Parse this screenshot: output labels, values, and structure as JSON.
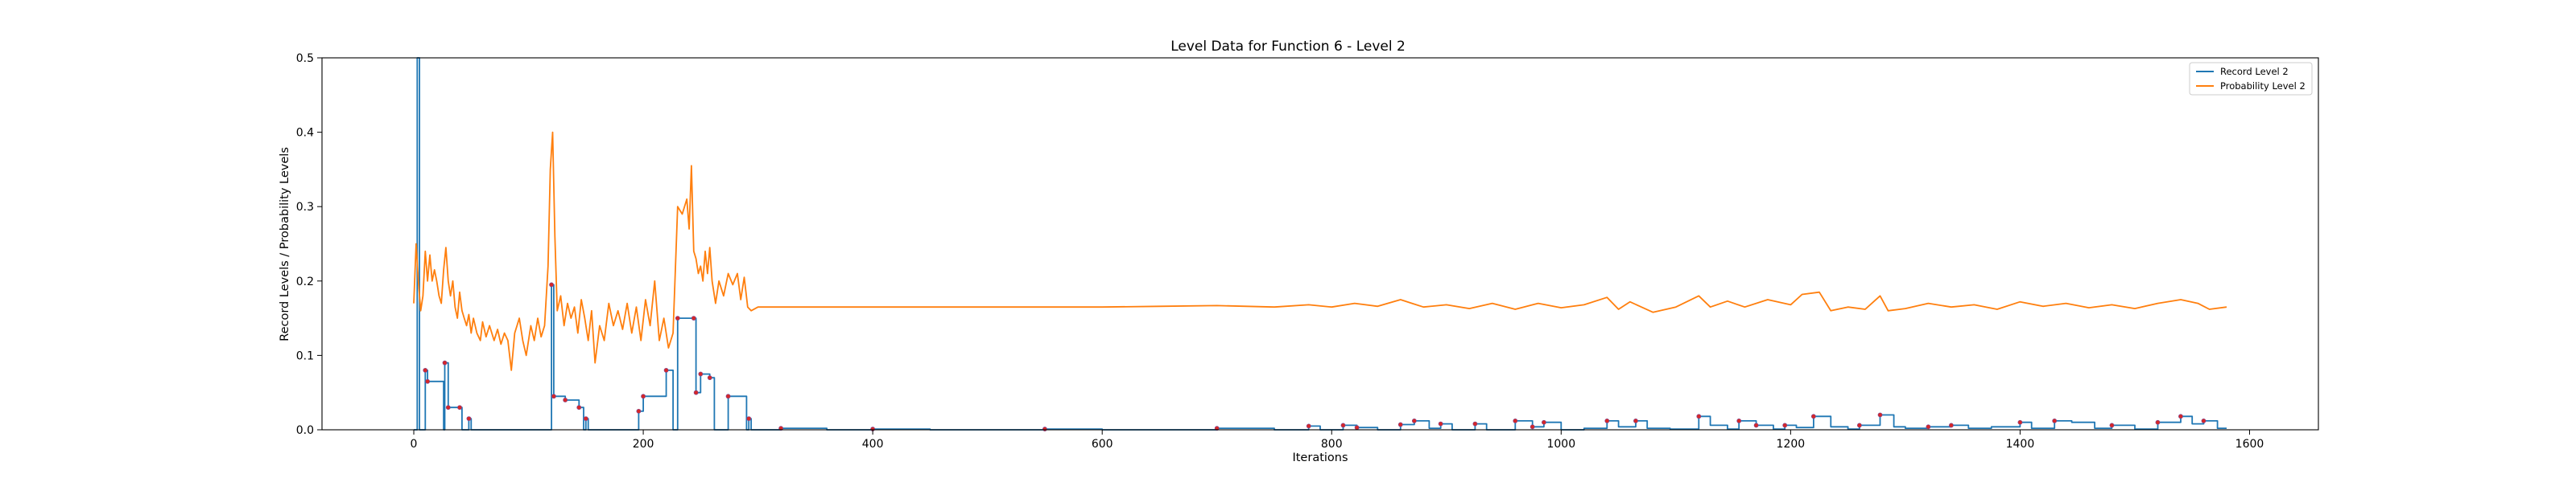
{
  "chart_data": {
    "type": "line",
    "title": "Level Data for Function 6 - Level 2",
    "xlabel": "Iterations",
    "ylabel": "Record Levels / Probability Levels",
    "xlim": [
      -80,
      1660
    ],
    "ylim": [
      0,
      0.5
    ],
    "x_ticks": [
      0,
      200,
      400,
      600,
      800,
      1000,
      1200,
      1400,
      1600
    ],
    "y_ticks": [
      0.0,
      0.1,
      0.2,
      0.3,
      0.4,
      0.5
    ],
    "x_tick_labels": [
      "0",
      "200",
      "400",
      "600",
      "800",
      "1000",
      "1200",
      "1400",
      "1600"
    ],
    "y_tick_labels": [
      "0.0",
      "0.1",
      "0.2",
      "0.3",
      "0.4",
      "0.5"
    ],
    "grid": false,
    "legend_position": "top-right",
    "colors": {
      "record": "#1f77b4",
      "probability": "#ff7f0e",
      "marker": "#d62728"
    },
    "series": [
      {
        "name": "Record Level 2",
        "style": "step",
        "points": [
          [
            0,
            0
          ],
          [
            2,
            0
          ],
          [
            3,
            0.5
          ],
          [
            4,
            0.5
          ],
          [
            5,
            0
          ],
          [
            8,
            0
          ],
          [
            10,
            0.08
          ],
          [
            12,
            0.065
          ],
          [
            24,
            0.065
          ],
          [
            26,
            0
          ],
          [
            27,
            0.09
          ],
          [
            30,
            0.03
          ],
          [
            38,
            0.03
          ],
          [
            40,
            0.03
          ],
          [
            42,
            0
          ],
          [
            46,
            0
          ],
          [
            48,
            0.015
          ],
          [
            50,
            0
          ],
          [
            118,
            0
          ],
          [
            120,
            0.195
          ],
          [
            122,
            0.045
          ],
          [
            130,
            0.045
          ],
          [
            132,
            0.04
          ],
          [
            144,
            0.03
          ],
          [
            148,
            0
          ],
          [
            150,
            0.015
          ],
          [
            152,
            0
          ],
          [
            194,
            0
          ],
          [
            196,
            0.025
          ],
          [
            200,
            0.045
          ],
          [
            216,
            0.045
          ],
          [
            220,
            0.08
          ],
          [
            226,
            0
          ],
          [
            230,
            0.15
          ],
          [
            244,
            0.15
          ],
          [
            246,
            0.05
          ],
          [
            250,
            0.075
          ],
          [
            258,
            0.07
          ],
          [
            262,
            0
          ],
          [
            270,
            0
          ],
          [
            274,
            0.045
          ],
          [
            288,
            0.045
          ],
          [
            290,
            0
          ],
          [
            292,
            0.015
          ],
          [
            294,
            0
          ],
          [
            300,
            0
          ],
          [
            320,
            0.002
          ],
          [
            360,
            0
          ],
          [
            400,
            0.001
          ],
          [
            450,
            0
          ],
          [
            500,
            0
          ],
          [
            550,
            0.001
          ],
          [
            600,
            0
          ],
          [
            650,
            0
          ],
          [
            700,
            0.002
          ],
          [
            750,
            0
          ],
          [
            780,
            0.005
          ],
          [
            790,
            0
          ],
          [
            810,
            0.006
          ],
          [
            822,
            0.003
          ],
          [
            840,
            0
          ],
          [
            860,
            0.007
          ],
          [
            872,
            0.012
          ],
          [
            885,
            0.002
          ],
          [
            895,
            0.008
          ],
          [
            905,
            0
          ],
          [
            925,
            0.008
          ],
          [
            935,
            0
          ],
          [
            960,
            0.012
          ],
          [
            975,
            0.004
          ],
          [
            985,
            0.01
          ],
          [
            1000,
            0
          ],
          [
            1020,
            0.002
          ],
          [
            1040,
            0.012
          ],
          [
            1050,
            0.004
          ],
          [
            1065,
            0.012
          ],
          [
            1075,
            0.002
          ],
          [
            1095,
            0.001
          ],
          [
            1120,
            0.018
          ],
          [
            1130,
            0.006
          ],
          [
            1145,
            0.001
          ],
          [
            1155,
            0.012
          ],
          [
            1170,
            0.006
          ],
          [
            1185,
            0.001
          ],
          [
            1195,
            0.006
          ],
          [
            1205,
            0.003
          ],
          [
            1220,
            0.018
          ],
          [
            1235,
            0.004
          ],
          [
            1250,
            0.001
          ],
          [
            1260,
            0.006
          ],
          [
            1278,
            0.02
          ],
          [
            1290,
            0.004
          ],
          [
            1300,
            0.002
          ],
          [
            1320,
            0.004
          ],
          [
            1340,
            0.006
          ],
          [
            1355,
            0.002
          ],
          [
            1375,
            0.004
          ],
          [
            1400,
            0.01
          ],
          [
            1410,
            0.002
          ],
          [
            1430,
            0.012
          ],
          [
            1445,
            0.01
          ],
          [
            1465,
            0.002
          ],
          [
            1480,
            0.006
          ],
          [
            1500,
            0.001
          ],
          [
            1520,
            0.01
          ],
          [
            1540,
            0.018
          ],
          [
            1550,
            0.008
          ],
          [
            1560,
            0.012
          ],
          [
            1572,
            0.002
          ],
          [
            1580,
            0.002
          ]
        ]
      },
      {
        "name": "Probability Level 2",
        "style": "line",
        "points": [
          [
            0,
            0.17
          ],
          [
            2,
            0.25
          ],
          [
            4,
            0.2
          ],
          [
            6,
            0.16
          ],
          [
            8,
            0.18
          ],
          [
            10,
            0.24
          ],
          [
            12,
            0.2
          ],
          [
            14,
            0.235
          ],
          [
            16,
            0.2
          ],
          [
            18,
            0.215
          ],
          [
            20,
            0.2
          ],
          [
            22,
            0.18
          ],
          [
            24,
            0.17
          ],
          [
            26,
            0.215
          ],
          [
            28,
            0.245
          ],
          [
            30,
            0.2
          ],
          [
            32,
            0.18
          ],
          [
            34,
            0.2
          ],
          [
            36,
            0.165
          ],
          [
            38,
            0.15
          ],
          [
            40,
            0.185
          ],
          [
            42,
            0.16
          ],
          [
            44,
            0.15
          ],
          [
            46,
            0.14
          ],
          [
            48,
            0.155
          ],
          [
            50,
            0.13
          ],
          [
            52,
            0.15
          ],
          [
            55,
            0.13
          ],
          [
            58,
            0.12
          ],
          [
            60,
            0.145
          ],
          [
            63,
            0.125
          ],
          [
            66,
            0.14
          ],
          [
            70,
            0.12
          ],
          [
            73,
            0.135
          ],
          [
            76,
            0.115
          ],
          [
            79,
            0.13
          ],
          [
            82,
            0.12
          ],
          [
            85,
            0.08
          ],
          [
            88,
            0.13
          ],
          [
            92,
            0.15
          ],
          [
            95,
            0.12
          ],
          [
            98,
            0.1
          ],
          [
            102,
            0.14
          ],
          [
            105,
            0.12
          ],
          [
            108,
            0.15
          ],
          [
            111,
            0.125
          ],
          [
            114,
            0.14
          ],
          [
            117,
            0.22
          ],
          [
            119,
            0.35
          ],
          [
            121,
            0.4
          ],
          [
            123,
            0.26
          ],
          [
            125,
            0.16
          ],
          [
            128,
            0.18
          ],
          [
            131,
            0.14
          ],
          [
            134,
            0.17
          ],
          [
            137,
            0.15
          ],
          [
            140,
            0.165
          ],
          [
            143,
            0.13
          ],
          [
            146,
            0.175
          ],
          [
            149,
            0.15
          ],
          [
            152,
            0.12
          ],
          [
            155,
            0.16
          ],
          [
            158,
            0.09
          ],
          [
            162,
            0.14
          ],
          [
            166,
            0.12
          ],
          [
            170,
            0.17
          ],
          [
            174,
            0.14
          ],
          [
            178,
            0.16
          ],
          [
            182,
            0.135
          ],
          [
            186,
            0.17
          ],
          [
            190,
            0.13
          ],
          [
            194,
            0.165
          ],
          [
            198,
            0.12
          ],
          [
            202,
            0.175
          ],
          [
            206,
            0.14
          ],
          [
            210,
            0.2
          ],
          [
            214,
            0.12
          ],
          [
            218,
            0.15
          ],
          [
            222,
            0.11
          ],
          [
            226,
            0.13
          ],
          [
            230,
            0.3
          ],
          [
            234,
            0.29
          ],
          [
            238,
            0.31
          ],
          [
            240,
            0.27
          ],
          [
            242,
            0.355
          ],
          [
            244,
            0.24
          ],
          [
            246,
            0.23
          ],
          [
            248,
            0.21
          ],
          [
            250,
            0.22
          ],
          [
            252,
            0.2
          ],
          [
            254,
            0.24
          ],
          [
            256,
            0.21
          ],
          [
            258,
            0.245
          ],
          [
            260,
            0.2
          ],
          [
            263,
            0.17
          ],
          [
            266,
            0.2
          ],
          [
            270,
            0.18
          ],
          [
            274,
            0.21
          ],
          [
            278,
            0.195
          ],
          [
            282,
            0.21
          ],
          [
            285,
            0.175
          ],
          [
            288,
            0.205
          ],
          [
            291,
            0.165
          ],
          [
            294,
            0.16
          ],
          [
            300,
            0.165
          ],
          [
            350,
            0.165
          ],
          [
            400,
            0.165
          ],
          [
            450,
            0.165
          ],
          [
            500,
            0.165
          ],
          [
            550,
            0.165
          ],
          [
            600,
            0.165
          ],
          [
            650,
            0.166
          ],
          [
            700,
            0.167
          ],
          [
            750,
            0.165
          ],
          [
            780,
            0.168
          ],
          [
            800,
            0.165
          ],
          [
            820,
            0.17
          ],
          [
            840,
            0.166
          ],
          [
            860,
            0.175
          ],
          [
            870,
            0.17
          ],
          [
            880,
            0.165
          ],
          [
            900,
            0.168
          ],
          [
            920,
            0.163
          ],
          [
            940,
            0.17
          ],
          [
            960,
            0.162
          ],
          [
            980,
            0.17
          ],
          [
            1000,
            0.164
          ],
          [
            1020,
            0.168
          ],
          [
            1040,
            0.178
          ],
          [
            1050,
            0.162
          ],
          [
            1060,
            0.172
          ],
          [
            1080,
            0.158
          ],
          [
            1100,
            0.165
          ],
          [
            1120,
            0.18
          ],
          [
            1130,
            0.165
          ],
          [
            1145,
            0.173
          ],
          [
            1160,
            0.165
          ],
          [
            1180,
            0.175
          ],
          [
            1200,
            0.168
          ],
          [
            1210,
            0.182
          ],
          [
            1225,
            0.185
          ],
          [
            1235,
            0.16
          ],
          [
            1250,
            0.165
          ],
          [
            1265,
            0.162
          ],
          [
            1278,
            0.18
          ],
          [
            1285,
            0.16
          ],
          [
            1300,
            0.163
          ],
          [
            1320,
            0.17
          ],
          [
            1340,
            0.165
          ],
          [
            1360,
            0.168
          ],
          [
            1380,
            0.162
          ],
          [
            1400,
            0.172
          ],
          [
            1420,
            0.166
          ],
          [
            1440,
            0.17
          ],
          [
            1460,
            0.164
          ],
          [
            1480,
            0.168
          ],
          [
            1500,
            0.163
          ],
          [
            1520,
            0.17
          ],
          [
            1540,
            0.175
          ],
          [
            1555,
            0.17
          ],
          [
            1565,
            0.162
          ],
          [
            1580,
            0.165
          ]
        ]
      }
    ],
    "markers": [
      [
        10,
        0.08
      ],
      [
        12,
        0.065
      ],
      [
        27,
        0.09
      ],
      [
        30,
        0.03
      ],
      [
        40,
        0.03
      ],
      [
        48,
        0.015
      ],
      [
        120,
        0.195
      ],
      [
        122,
        0.045
      ],
      [
        132,
        0.04
      ],
      [
        144,
        0.03
      ],
      [
        150,
        0.015
      ],
      [
        196,
        0.025
      ],
      [
        200,
        0.045
      ],
      [
        220,
        0.08
      ],
      [
        230,
        0.15
      ],
      [
        244,
        0.15
      ],
      [
        246,
        0.05
      ],
      [
        250,
        0.075
      ],
      [
        258,
        0.07
      ],
      [
        274,
        0.045
      ],
      [
        292,
        0.015
      ],
      [
        320,
        0.002
      ],
      [
        400,
        0.001
      ],
      [
        550,
        0.001
      ],
      [
        700,
        0.002
      ],
      [
        780,
        0.005
      ],
      [
        810,
        0.006
      ],
      [
        822,
        0.003
      ],
      [
        860,
        0.007
      ],
      [
        872,
        0.012
      ],
      [
        895,
        0.008
      ],
      [
        925,
        0.008
      ],
      [
        960,
        0.012
      ],
      [
        975,
        0.004
      ],
      [
        985,
        0.01
      ],
      [
        1040,
        0.012
      ],
      [
        1065,
        0.012
      ],
      [
        1120,
        0.018
      ],
      [
        1155,
        0.012
      ],
      [
        1170,
        0.006
      ],
      [
        1195,
        0.006
      ],
      [
        1220,
        0.018
      ],
      [
        1260,
        0.006
      ],
      [
        1278,
        0.02
      ],
      [
        1320,
        0.004
      ],
      [
        1340,
        0.006
      ],
      [
        1400,
        0.01
      ],
      [
        1430,
        0.012
      ],
      [
        1480,
        0.006
      ],
      [
        1520,
        0.01
      ],
      [
        1540,
        0.018
      ],
      [
        1560,
        0.012
      ]
    ]
  }
}
